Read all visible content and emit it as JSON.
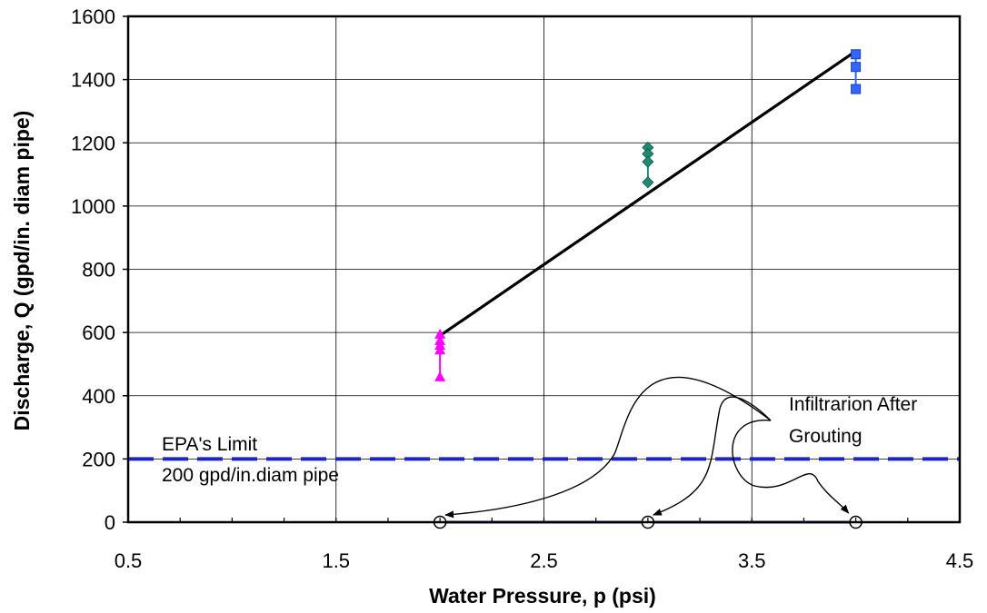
{
  "chart_data": {
    "type": "scatter",
    "xlabel": "Water Pressure, p (psi)",
    "ylabel": "Discharge, Q (gpd/in. diam pipe)",
    "xlim": [
      0.5,
      4.5
    ],
    "ylim": [
      0,
      1600
    ],
    "xticks": [
      "0.5",
      "1.5",
      "2.5",
      "3.5",
      "4.5"
    ],
    "yticks": [
      "0",
      "200",
      "400",
      "600",
      "800",
      "1000",
      "1200",
      "1400",
      "1600"
    ],
    "grid": true,
    "series": [
      {
        "marker": "triangle",
        "color": "#FF00FF",
        "points": [
          [
            2.0,
            595
          ],
          [
            2.0,
            575
          ],
          [
            2.0,
            560
          ],
          [
            2.0,
            545
          ],
          [
            2.0,
            460
          ]
        ]
      },
      {
        "marker": "diamond",
        "color": "#1F8A70",
        "points": [
          [
            3.0,
            1185
          ],
          [
            3.0,
            1165
          ],
          [
            3.0,
            1140
          ],
          [
            3.0,
            1075
          ]
        ]
      },
      {
        "marker": "square",
        "color": "#3366FF",
        "points": [
          [
            4.0,
            1480
          ],
          [
            4.0,
            1440
          ],
          [
            4.0,
            1370
          ]
        ]
      },
      {
        "marker": "circle",
        "color": "#FFFFFF",
        "points": [
          [
            2.0,
            0
          ],
          [
            3.0,
            0
          ],
          [
            4.0,
            0
          ]
        ]
      }
    ],
    "fit_line": {
      "x": [
        2.0,
        4.0
      ],
      "y": [
        590,
        1490
      ],
      "color": "#000000"
    },
    "limit_line": {
      "y": 200,
      "color": "#1A23CC",
      "style": "dashed"
    },
    "annotations": {
      "limit_line1": "EPA's Limit",
      "limit_line2": "200 gpd/in.diam pipe",
      "grout_line1": "Infiltrarion After",
      "grout_line2": "Grouting"
    }
  }
}
